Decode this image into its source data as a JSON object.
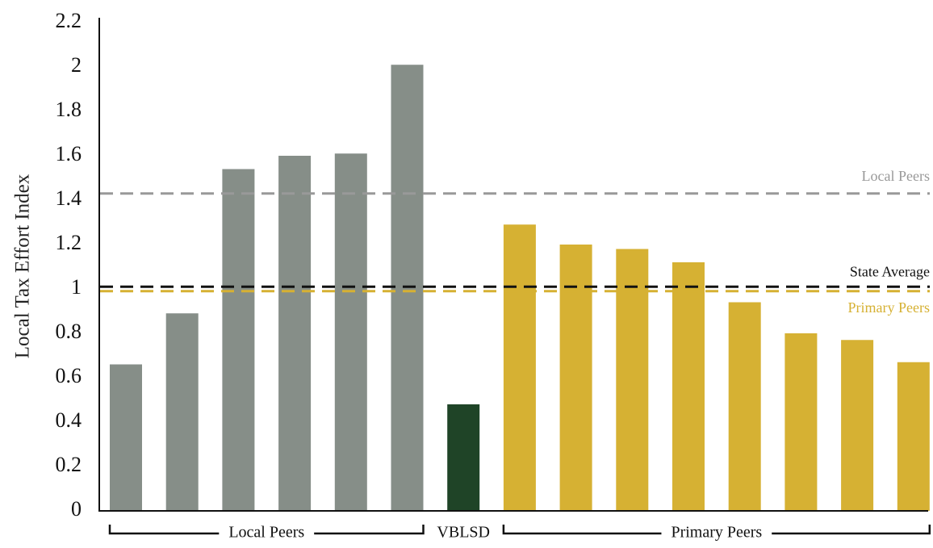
{
  "chart_data": {
    "type": "bar",
    "ylabel": "Local Tax Effort Index",
    "xlabel": "",
    "title": "",
    "ylim": [
      0,
      2.2
    ],
    "yticks": [
      0,
      0.2,
      0.4,
      0.6,
      0.8,
      1,
      1.2,
      1.4,
      1.6,
      1.8,
      2,
      2.2
    ],
    "ytick_labels": [
      "0",
      "0.2",
      "0.4",
      "0.6",
      "0.8",
      "1",
      "1.2",
      "1.4",
      "1.6",
      "1.8",
      "2",
      "2.2"
    ],
    "grid": false,
    "values": [
      0.66,
      0.89,
      1.54,
      1.6,
      1.61,
      2.01,
      0.48,
      1.29,
      1.2,
      1.18,
      1.12,
      0.94,
      0.8,
      0.77,
      0.67
    ],
    "bar_groups": [
      "local",
      "local",
      "local",
      "local",
      "local",
      "local",
      "vblsd",
      "primary",
      "primary",
      "primary",
      "primary",
      "primary",
      "primary",
      "primary",
      "primary"
    ],
    "colors": {
      "local": "#868E88",
      "vblsd": "#1F4427",
      "primary": "#D6B133"
    },
    "reference_lines": [
      {
        "label": "Local Peers",
        "value": 1.43,
        "color": "#999999"
      },
      {
        "label": "State Average",
        "value": 1.01,
        "color": "#111111"
      },
      {
        "label": "Primary Peers",
        "value": 0.99,
        "color": "#D6B133"
      }
    ],
    "groups": [
      {
        "label": "Local Peers",
        "first_bar": 0,
        "last_bar": 5
      },
      {
        "label": "VBLSD",
        "first_bar": 6,
        "last_bar": 6
      },
      {
        "label": "Primary Peers",
        "first_bar": 7,
        "last_bar": 14
      }
    ]
  }
}
